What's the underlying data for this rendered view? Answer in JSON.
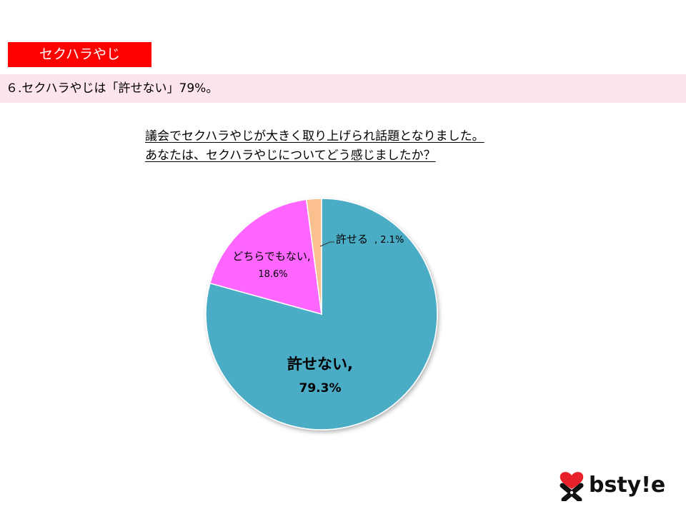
{
  "section_tag": "セクハラやじ",
  "headline": "６.セクハラやじは「許せない」79%。",
  "question": {
    "line1": "議会でセクハラやじが大きく取り上げられ話題となりました。",
    "line2": "あなたは、セクハラやじについてどう感じましたか？"
  },
  "logo_text": "bsty!e",
  "colors": {
    "tag_bg": "#ff0000",
    "headline_bg": "#fde4ef",
    "slice_1": "#4bacc6",
    "slice_2": "#ff66ff",
    "slice_3": "#fac090"
  },
  "chart_data": {
    "type": "pie",
    "title": "",
    "slices": [
      {
        "label": "許せない",
        "value": 79.3,
        "display": "79.3%",
        "color": "#4bacc6"
      },
      {
        "label": "どちらでもない",
        "value": 18.6,
        "display": "18.6%",
        "color": "#ff66ff"
      },
      {
        "label": "許せる",
        "value": 2.1,
        "display": "2.1%",
        "color": "#fac090"
      }
    ],
    "start": "12 o'clock",
    "direction": "clockwise",
    "legend": "none"
  }
}
